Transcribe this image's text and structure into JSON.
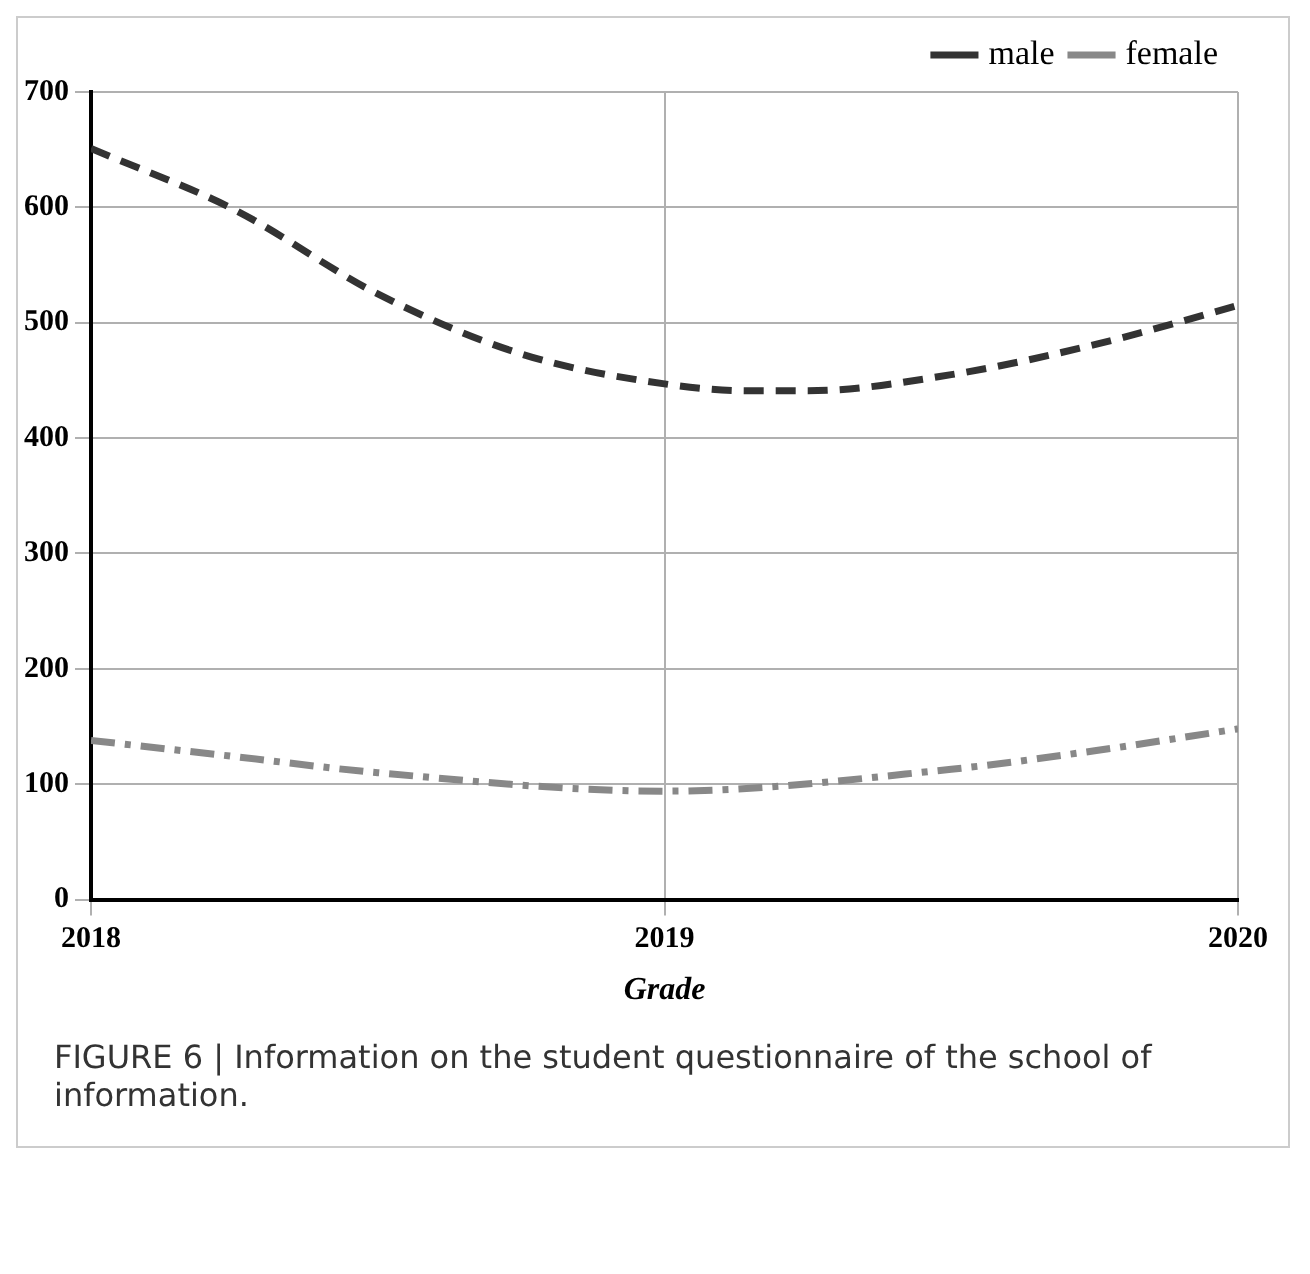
{
  "chart_data": {
    "type": "line",
    "xlabel": "Grade",
    "annotations": [
      "FIGURE 6 | Information on the student questionnaire of the school of information."
    ],
    "x": [
      2018,
      2018.25,
      2018.5,
      2018.75,
      2019,
      2019.15,
      2019.25,
      2019.5,
      2019.75,
      2020
    ],
    "series": [
      {
        "name": "male",
        "color": "#333333",
        "line_style": "dashed",
        "values": [
          651,
          598,
          525,
          473,
          447,
          441,
          441,
          455,
          481,
          515
        ]
      },
      {
        "name": "female",
        "color": "#888888",
        "line_style": "dotted",
        "x": [
          2018,
          2018.25,
          2018.5,
          2019,
          2019.5,
          2019.75,
          2020
        ],
        "values": [
          138,
          124,
          110,
          94,
          113,
          129,
          148
        ]
      }
    ],
    "xlim": [
      2018,
      2020
    ],
    "xticks": [
      2018,
      2019,
      2020
    ],
    "ylim": [
      0,
      700
    ],
    "yticks": [
      0,
      100,
      200,
      300,
      400,
      500,
      600,
      700
    ],
    "grid": true,
    "legend": "top right",
    "marker": "none"
  }
}
